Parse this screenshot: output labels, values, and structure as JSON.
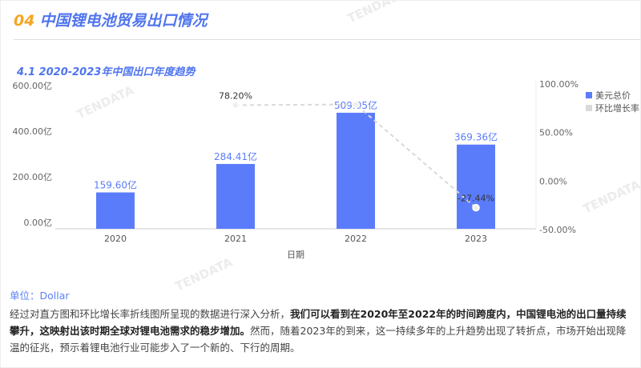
{
  "header": {
    "number": "04",
    "title": "中国锂电池贸易出口情况"
  },
  "section": {
    "title": "4.1 2020-2023年中国出口年度趋势"
  },
  "watermark": "TENDATA",
  "chart_data": {
    "type": "bar+line",
    "categories": [
      "2020",
      "2021",
      "2022",
      "2023"
    ],
    "xlabel": "日期",
    "y_left": {
      "ticks": [
        "0.00亿",
        "200.00亿",
        "400.00亿",
        "600.00亿"
      ],
      "range": [
        0,
        600
      ]
    },
    "y_right": {
      "ticks": [
        "-50.00%",
        "0.00%",
        "50.00%",
        "100.00%"
      ],
      "range": [
        -50,
        100
      ]
    },
    "series": [
      {
        "name": "美元总价",
        "type": "bar",
        "values": [
          159.6,
          284.41,
          509.05,
          369.36
        ],
        "labels": [
          "159.60亿",
          "284.41亿",
          "509.05亿",
          "369.36亿"
        ],
        "color": "#5b7cfa"
      },
      {
        "name": "环比增长率",
        "type": "line",
        "values": [
          null,
          78.2,
          78.98,
          -27.44
        ],
        "labels": [
          "",
          "78.20%",
          "",
          "-27.44%"
        ],
        "color": "#d9d9d9"
      }
    ],
    "legend": "top-right",
    "grid": false
  },
  "footer": {
    "unit": "单位：Dollar",
    "para_1": "经过对直方图和环比增长率折线图所呈现的数据进行深入分析，",
    "para_bold": "我们可以看到在2020年至2022年的时间跨度内，中国锂电池的出口量持续攀升，这映射出该时期全球对锂电池需求的稳步增加。",
    "para_2": "然而，随着2023年的到来，这一持续多年的上升趋势出现了转折点，市场开始出现降温的征兆，预示着锂电池行业可能步入了一个新的、下行的周期。"
  }
}
